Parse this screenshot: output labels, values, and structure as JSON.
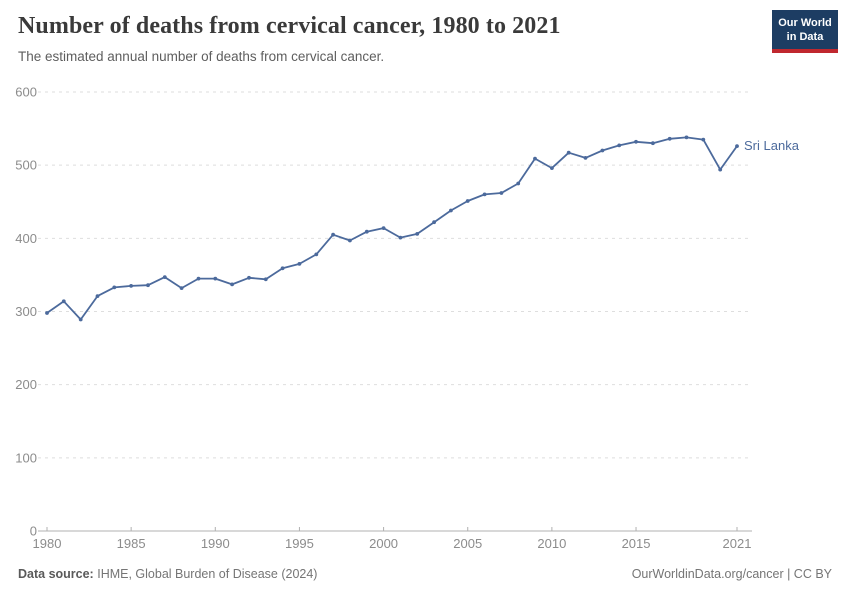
{
  "header": {
    "title": "Number of deaths from cervical cancer, 1980 to 2021",
    "subtitle": "The estimated annual number of deaths from cervical cancer.",
    "logo_line1": "Our World",
    "logo_line2": "in Data"
  },
  "chart_data": {
    "type": "line",
    "title": "Number of deaths from cervical cancer, 1980 to 2021",
    "series": [
      {
        "name": "Sri Lanka",
        "color": "#4c6a9c",
        "x": [
          1980,
          1981,
          1982,
          1983,
          1984,
          1985,
          1986,
          1987,
          1988,
          1989,
          1990,
          1991,
          1992,
          1993,
          1994,
          1995,
          1996,
          1997,
          1998,
          1999,
          2000,
          2001,
          2002,
          2003,
          2004,
          2005,
          2006,
          2007,
          2008,
          2009,
          2010,
          2011,
          2012,
          2013,
          2014,
          2015,
          2016,
          2017,
          2018,
          2019,
          2020,
          2021
        ],
        "values": [
          298,
          314,
          289,
          321,
          333,
          335,
          336,
          347,
          332,
          345,
          345,
          337,
          346,
          344,
          359,
          365,
          378,
          405,
          397,
          409,
          414,
          401,
          406,
          422,
          438,
          451,
          460,
          462,
          475,
          509,
          496,
          517,
          510,
          520,
          527,
          532,
          530,
          536,
          538,
          535,
          494,
          526
        ]
      }
    ],
    "xlabel": "",
    "ylabel": "",
    "ylim": [
      0,
      600
    ],
    "yticks": [
      0,
      100,
      200,
      300,
      400,
      500,
      600
    ],
    "xticks": [
      1980,
      1985,
      1990,
      1995,
      2000,
      2005,
      2010,
      2015,
      2021
    ],
    "grid": "dashed horizontal",
    "legend_position": "end-of-line label",
    "colors": {
      "line": "#4c6a9c",
      "entity_label": "#4c6a9c",
      "gridline": "#dedede",
      "axis": "#b0b0b0",
      "tick_label": "#8c8c8c"
    }
  },
  "footer": {
    "source_label": "Data source:",
    "source_text": "IHME, Global Burden of Disease (2024)",
    "attribution": "OurWorldinData.org/cancer | CC BY"
  }
}
